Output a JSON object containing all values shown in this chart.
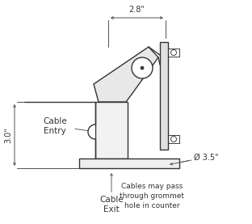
{
  "bg_color": "#ffffff",
  "line_color": "#333333",
  "dim_color": "#444444",
  "text_color": "#333333",
  "annotation_color": "#555555",
  "dim_28": "2.8\"",
  "dim_30": "3.0\"",
  "dim_35": "Ø 3.5\"",
  "label_cable_entry": "Cable\nEntry",
  "label_cable_exit": "Cable\nExit",
  "label_note": "Cables may pass\nthrough grommet\nhole in counter",
  "figsize": [
    3.12,
    2.77
  ],
  "dpi": 100
}
